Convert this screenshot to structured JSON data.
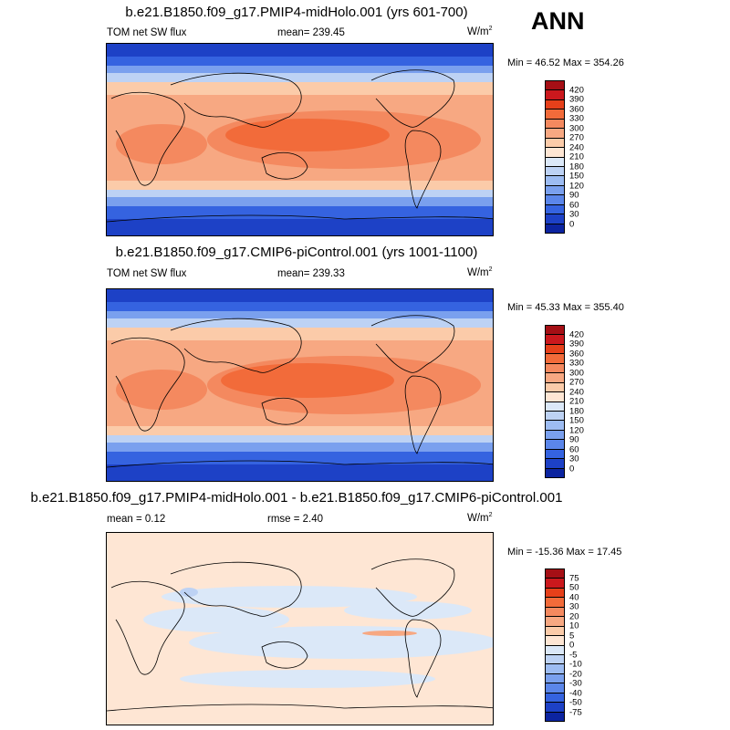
{
  "season": "ANN",
  "chart_data": [
    {
      "type": "heatmap",
      "title": "b.e21.B1850.f09_g17.PMIP4-midHolo.001 (yrs 601-700)",
      "variable": "TOM net SW flux",
      "mean_label": "mean= 239.45",
      "units": "W/m",
      "units_exp": "2",
      "min": 46.52,
      "max": 354.26,
      "minmax_text": "Min =  46.52 Max = 354.26",
      "levels": [
        "420",
        "390",
        "360",
        "330",
        "300",
        "270",
        "240",
        "210",
        "180",
        "150",
        "120",
        "90",
        "60",
        "30",
        "0"
      ],
      "colors": [
        "#a50f15",
        "#cb181d",
        "#e6401a",
        "#f26b3a",
        "#f4895f",
        "#f7a882",
        "#fbcba9",
        "#fee6d4",
        "#dbe8f8",
        "#bdd2f4",
        "#9dbcf2",
        "#7aa0ee",
        "#5b86ea",
        "#3563e0",
        "#1d41c6",
        "#0c24a0"
      ]
    },
    {
      "type": "heatmap",
      "title": "b.e21.B1850.f09_g17.CMIP6-piControl.001 (yrs 1001-1100)",
      "variable": "TOM net SW flux",
      "mean_label": "mean= 239.33",
      "units": "W/m",
      "units_exp": "2",
      "min": 45.33,
      "max": 355.4,
      "minmax_text": "Min =  45.33 Max = 355.40",
      "levels": [
        "420",
        "390",
        "360",
        "330",
        "300",
        "270",
        "240",
        "210",
        "180",
        "150",
        "120",
        "90",
        "60",
        "30",
        "0"
      ],
      "colors": [
        "#a50f15",
        "#cb181d",
        "#e6401a",
        "#f26b3a",
        "#f4895f",
        "#f7a882",
        "#fbcba9",
        "#fee6d4",
        "#dbe8f8",
        "#bdd2f4",
        "#9dbcf2",
        "#7aa0ee",
        "#5b86ea",
        "#3563e0",
        "#1d41c6",
        "#0c24a0"
      ]
    },
    {
      "type": "heatmap",
      "title": "b.e21.B1850.f09_g17.PMIP4-midHolo.001 - b.e21.B1850.f09_g17.CMIP6-piControl.001",
      "mean_label": "mean =   0.12",
      "rmse_label": "rmse =   2.40",
      "units": "W/m",
      "units_exp": "2",
      "min": -15.36,
      "max": 17.45,
      "minmax_text": "Min = -15.36 Max =  17.45",
      "levels": [
        "75",
        "50",
        "40",
        "30",
        "20",
        "10",
        "5",
        "0",
        "-5",
        "-10",
        "-20",
        "-30",
        "-40",
        "-50",
        "-75"
      ],
      "colors": [
        "#a50f15",
        "#cb181d",
        "#e6401a",
        "#f26b3a",
        "#f4895f",
        "#f7a882",
        "#fbcba9",
        "#fee6d4",
        "#dbe8f8",
        "#bdd2f4",
        "#9dbcf2",
        "#7aa0ee",
        "#5b86ea",
        "#3563e0",
        "#1d41c6",
        "#0c24a0"
      ]
    }
  ]
}
